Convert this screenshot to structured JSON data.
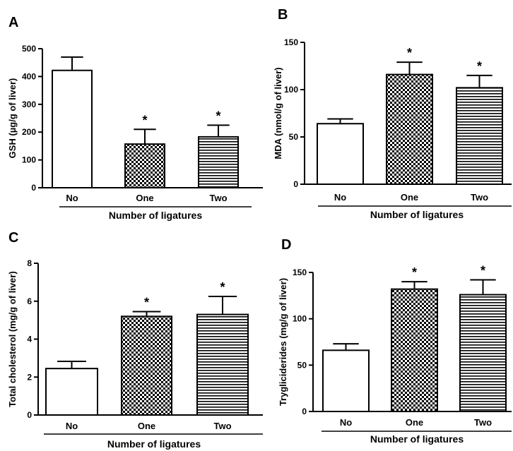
{
  "chart_data": [
    {
      "type": "bar",
      "panel": "A",
      "categories": [
        "No",
        "One",
        "Two"
      ],
      "values": [
        422,
        157,
        183
      ],
      "errors": [
        48,
        53,
        42
      ],
      "significance": [
        "",
        "*",
        "*"
      ],
      "ylabel": "GSH (µg/g of liver)",
      "xlabel": "Number of ligatures",
      "ylim": [
        0,
        500
      ],
      "yticks": [
        "0",
        "100",
        "200",
        "300",
        "400",
        "500"
      ],
      "patterns": [
        "white",
        "checker",
        "hstripe"
      ]
    },
    {
      "type": "bar",
      "panel": "B",
      "categories": [
        "No",
        "One",
        "Two"
      ],
      "values": [
        64,
        116,
        102
      ],
      "errors": [
        5,
        13,
        13
      ],
      "significance": [
        "",
        "*",
        "*"
      ],
      "ylabel": "MDA (nmol/g of liver)",
      "xlabel": "Number of ligatures",
      "ylim": [
        0,
        150
      ],
      "yticks": [
        "0",
        "50",
        "100",
        "150"
      ],
      "patterns": [
        "white",
        "checker",
        "hstripe"
      ]
    },
    {
      "type": "bar",
      "panel": "C",
      "categories": [
        "No",
        "One",
        "Two"
      ],
      "values": [
        2.45,
        5.2,
        5.3
      ],
      "errors": [
        0.38,
        0.25,
        0.95
      ],
      "significance": [
        "",
        "*",
        "*"
      ],
      "ylabel": "Total cholesterol (mg/g of liver)",
      "xlabel": "Number of ligatures",
      "ylim": [
        0,
        8
      ],
      "yticks": [
        "0",
        "2",
        "4",
        "6",
        "8"
      ],
      "patterns": [
        "white",
        "checker",
        "hstripe"
      ]
    },
    {
      "type": "bar",
      "panel": "D",
      "categories": [
        "No",
        "One",
        "Two"
      ],
      "values": [
        66,
        132,
        126
      ],
      "errors": [
        7,
        8,
        16
      ],
      "significance": [
        "",
        "*",
        "*"
      ],
      "ylabel": "Trygliciderides (mg/g of liver)",
      "xlabel": "Number of ligatures",
      "ylim": [
        0,
        150
      ],
      "yticks": [
        "0",
        "50",
        "100",
        "150"
      ],
      "patterns": [
        "white",
        "checker",
        "hstripe"
      ]
    }
  ]
}
